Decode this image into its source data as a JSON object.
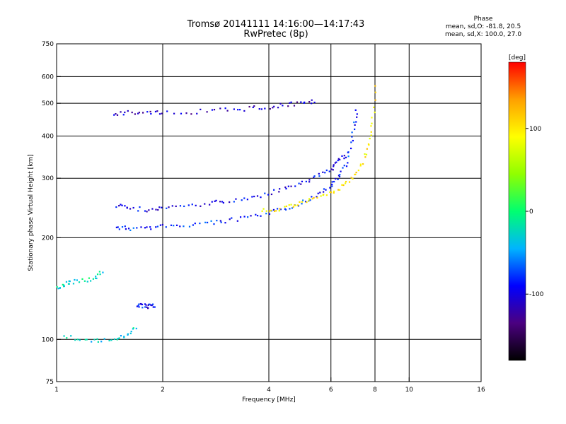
{
  "chart_data": {
    "type": "scatter",
    "title": "Tromsø 20141111 14:16:00—14:17:43",
    "subtitle": "RwPretec (8p)",
    "phase_title": "Phase",
    "phase_line1": "mean, sd,O: -81.8, 20.5",
    "phase_line2": "mean, sd,X: 100.0, 27.0",
    "xlabel": "Frequency [MHz]",
    "ylabel": "Stationary phase Virtual Height [km]",
    "x_scale": "log",
    "y_scale": "log",
    "xlim": [
      1,
      16
    ],
    "ylim": [
      75,
      750
    ],
    "xticks": [
      1,
      2,
      4,
      6,
      8,
      10,
      16
    ],
    "yticks": [
      75,
      100,
      200,
      300,
      400,
      500,
      600,
      750
    ],
    "grid": true,
    "colorbar": {
      "label": "[deg]",
      "range": [
        -180,
        180
      ],
      "ticks": [
        100,
        0,
        -100
      ],
      "colors": [
        "#000000",
        "#4b0080",
        "#0000ff",
        "#00b4ff",
        "#00ff70",
        "#90ff00",
        "#ffff00",
        "#ffa000",
        "#ff0000"
      ]
    },
    "series": [
      {
        "trace": "o-mode-lower-f",
        "phase": -82,
        "x": [
          1.48,
          1.6,
          1.8,
          2.0,
          2.3,
          2.7,
          3.0,
          3.5,
          4.0,
          4.5,
          5.0,
          5.5,
          6.0,
          6.3,
          6.6,
          6.8,
          7.0,
          7.1
        ],
        "y": [
          215,
          213,
          214,
          216,
          218,
          221,
          224,
          229,
          236,
          245,
          255,
          268,
          285,
          300,
          330,
          370,
          430,
          480
        ]
      },
      {
        "trace": "o-mode-upper-f",
        "phase": -95,
        "x": [
          1.48,
          1.6,
          1.8,
          2.0,
          2.3,
          2.7,
          3.0,
          3.5,
          4.0,
          4.5,
          5.0,
          5.5,
          6.0,
          6.3,
          6.6
        ],
        "y": [
          250,
          245,
          242,
          244,
          248,
          252,
          256,
          262,
          270,
          280,
          292,
          305,
          320,
          335,
          355
        ]
      },
      {
        "trace": "x-mode",
        "phase": 100,
        "x": [
          3.8,
          4.2,
          4.6,
          5.0,
          5.5,
          6.0,
          6.5,
          7.0,
          7.4,
          7.7,
          7.9,
          8.0
        ],
        "y": [
          240,
          243,
          248,
          254,
          262,
          272,
          285,
          305,
          335,
          380,
          450,
          580
        ]
      },
      {
        "trace": "f-layer-multihop",
        "phase": -110,
        "x": [
          1.45,
          1.6,
          1.8,
          2.0,
          2.5,
          3.0,
          3.5,
          4.0,
          4.5,
          5.0,
          5.5
        ],
        "y": [
          465,
          470,
          472,
          470,
          472,
          477,
          482,
          488,
          495,
          502,
          510
        ]
      },
      {
        "trace": "e-region",
        "phase": -20,
        "x": [
          1.0,
          1.05,
          1.1,
          1.2,
          1.3,
          1.35
        ],
        "y": [
          142,
          145,
          148,
          150,
          152,
          160
        ]
      },
      {
        "trace": "e-region-low",
        "phase": -30,
        "x": [
          1.05,
          1.2,
          1.35,
          1.5,
          1.6,
          1.7
        ],
        "y": [
          102,
          100,
          99,
          101,
          104,
          108
        ]
      },
      {
        "trace": "scatter-120km",
        "phase": -90,
        "x": [
          1.7,
          1.75,
          1.8,
          1.85,
          1.9
        ],
        "y": [
          125,
          126,
          125,
          126,
          125
        ]
      }
    ]
  }
}
